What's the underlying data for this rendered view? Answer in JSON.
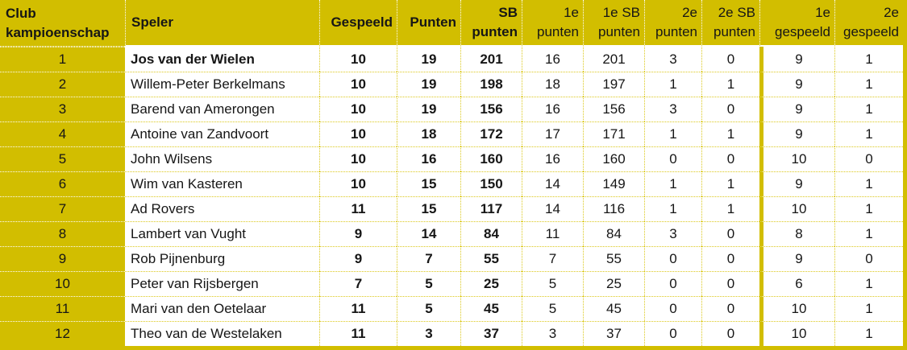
{
  "colors": {
    "gold": "#d2be00",
    "grid_dotted_gold": "#dcc91e",
    "grid_dotted_white": "#ffffff",
    "text": "#161616",
    "cell_background": "#ffffff"
  },
  "header": {
    "corner": {
      "line1": "Club",
      "line2": "kampioenschap"
    },
    "speler": "Speler",
    "columns": [
      {
        "key": "gespeeld",
        "lines": [
          "Gespeeld"
        ],
        "bold": true
      },
      {
        "key": "punten",
        "lines": [
          "Punten"
        ],
        "bold": true
      },
      {
        "key": "sb-punten",
        "lines": [
          "SB",
          "punten"
        ],
        "bold": true
      },
      {
        "key": "1e-punten",
        "lines": [
          "1e",
          "punten"
        ],
        "bold": false
      },
      {
        "key": "1e-sb-punten",
        "lines": [
          "1e SB",
          "punten"
        ],
        "bold": false
      },
      {
        "key": "2e-punten",
        "lines": [
          "2e",
          "punten"
        ],
        "bold": false
      },
      {
        "key": "2e-sb-punten",
        "lines": [
          "2e SB",
          "punten"
        ],
        "bold": false
      },
      {
        "key": "1e-gespeeld",
        "lines": [
          "1e",
          "gespeeld"
        ],
        "bold": false
      },
      {
        "key": "2e-gespeeld",
        "lines": [
          "2e",
          "gespeeld"
        ],
        "bold": false
      }
    ]
  },
  "value_keys": [
    "gespeeld",
    "punten",
    "sb-punten",
    "1e-punten",
    "1e-sb-punten",
    "2e-punten",
    "2e-sb-punten",
    "1e-gespeeld",
    "2e-gespeeld"
  ],
  "rows": [
    {
      "rank": "1",
      "speler": "Jos van der Wielen",
      "speler_bold": true,
      "values": [
        "10",
        "19",
        "201",
        "16",
        "201",
        "3",
        "0",
        "9",
        "1"
      ]
    },
    {
      "rank": "2",
      "speler": "Willem-Peter Berkelmans",
      "speler_bold": false,
      "values": [
        "10",
        "19",
        "198",
        "18",
        "197",
        "1",
        "1",
        "9",
        "1"
      ]
    },
    {
      "rank": "3",
      "speler": "Barend van Amerongen",
      "speler_bold": false,
      "values": [
        "10",
        "19",
        "156",
        "16",
        "156",
        "3",
        "0",
        "9",
        "1"
      ]
    },
    {
      "rank": "4",
      "speler": "Antoine van Zandvoort",
      "speler_bold": false,
      "values": [
        "10",
        "18",
        "172",
        "17",
        "171",
        "1",
        "1",
        "9",
        "1"
      ]
    },
    {
      "rank": "5",
      "speler": "John Wilsens",
      "speler_bold": false,
      "values": [
        "10",
        "16",
        "160",
        "16",
        "160",
        "0",
        "0",
        "10",
        "0"
      ]
    },
    {
      "rank": "6",
      "speler": "Wim van Kasteren",
      "speler_bold": false,
      "values": [
        "10",
        "15",
        "150",
        "14",
        "149",
        "1",
        "1",
        "9",
        "1"
      ]
    },
    {
      "rank": "7",
      "speler": "Ad Rovers",
      "speler_bold": false,
      "values": [
        "11",
        "15",
        "117",
        "14",
        "116",
        "1",
        "1",
        "10",
        "1"
      ]
    },
    {
      "rank": "8",
      "speler": "Lambert van Vught",
      "speler_bold": false,
      "values": [
        "9",
        "14",
        "84",
        "11",
        "84",
        "3",
        "0",
        "8",
        "1"
      ]
    },
    {
      "rank": "9",
      "speler": "Rob Pijnenburg",
      "speler_bold": false,
      "values": [
        "9",
        "7",
        "55",
        "7",
        "55",
        "0",
        "0",
        "9",
        "0"
      ]
    },
    {
      "rank": "10",
      "speler": "Peter van Rijsbergen",
      "speler_bold": false,
      "values": [
        "7",
        "5",
        "25",
        "5",
        "25",
        "0",
        "0",
        "6",
        "1"
      ]
    },
    {
      "rank": "11",
      "speler": "Mari van den Oetelaar",
      "speler_bold": false,
      "values": [
        "11",
        "5",
        "45",
        "5",
        "45",
        "0",
        "0",
        "10",
        "1"
      ]
    },
    {
      "rank": "12",
      "speler": "Theo van de Westelaken",
      "speler_bold": false,
      "values": [
        "11",
        "3",
        "37",
        "3",
        "37",
        "0",
        "0",
        "10",
        "1"
      ]
    }
  ]
}
